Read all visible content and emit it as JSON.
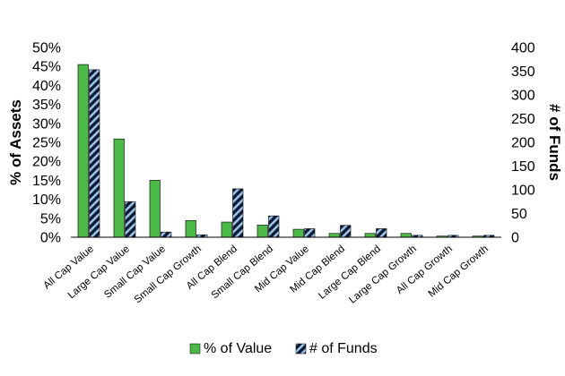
{
  "chart_data": {
    "type": "bar",
    "categories": [
      "All Cap Value",
      "Large Cap Value",
      "Small Cap Value",
      "Small Cap Growth",
      "All Cap Blend",
      "Small Cap Blend",
      "Mid Cap Value",
      "Mid Cap Blend",
      "Large Cap Blend",
      "Large Cap Growth",
      "All Cap Growth",
      "Mid Cap Growth"
    ],
    "series": [
      {
        "name": "% of Value",
        "axis": "left",
        "color": "#4cb848",
        "values": [
          45.5,
          25.9,
          15.0,
          4.4,
          4.0,
          3.2,
          2.1,
          1.0,
          1.0,
          1.0,
          0.3,
          0.3
        ]
      },
      {
        "name": "# of Funds",
        "axis": "right",
        "color": "#1f2a44",
        "pattern": "diagonal-stripes",
        "values": [
          353,
          75,
          11,
          5,
          102,
          45,
          18,
          25,
          18,
          4,
          4,
          4
        ]
      }
    ],
    "ylabel": "% of Assets",
    "y2label": "# of Funds",
    "ylim": [
      0,
      50
    ],
    "y2lim": [
      0,
      400
    ],
    "yticks": [
      "0%",
      "5%",
      "10%",
      "15%",
      "20%",
      "25%",
      "30%",
      "35%",
      "40%",
      "45%",
      "50%"
    ],
    "y2ticks": [
      "0",
      "50",
      "100",
      "150",
      "200",
      "250",
      "300",
      "350",
      "400"
    ],
    "legend": {
      "position": "bottom",
      "labels": [
        "% of Value",
        "# of Funds"
      ]
    },
    "grid": false
  }
}
